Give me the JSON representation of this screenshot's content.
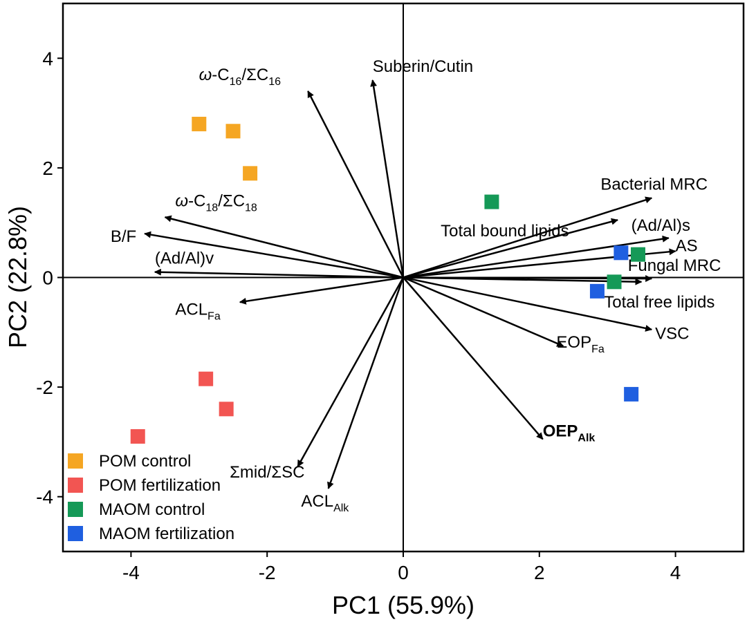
{
  "chart_data": {
    "type": "scatter",
    "subtype": "pca-biplot",
    "xlabel": "PC1 (55.9%)",
    "ylabel": "PC2 (22.8%)",
    "xlim": [
      -5,
      5
    ],
    "ylim": [
      -5,
      5
    ],
    "xticks": [
      -4,
      -2,
      0,
      2,
      4
    ],
    "yticks": [
      -4,
      -2,
      0,
      2,
      4
    ],
    "grid": false,
    "zero_lines": true,
    "legend_position": "bottom-left",
    "series": [
      {
        "name": "POM control",
        "color": "#F5A623",
        "points": [
          [
            -3.0,
            2.8
          ],
          [
            -2.5,
            2.67
          ],
          [
            -2.25,
            1.9
          ]
        ]
      },
      {
        "name": "POM fertilization",
        "color": "#F25552",
        "points": [
          [
            -2.9,
            -1.85
          ],
          [
            -2.6,
            -2.4
          ],
          [
            -3.9,
            -2.9
          ]
        ]
      },
      {
        "name": "MAOM control",
        "color": "#159957",
        "points": [
          [
            1.3,
            1.38
          ],
          [
            3.45,
            0.42
          ],
          [
            3.1,
            -0.08
          ]
        ]
      },
      {
        "name": "MAOM fertilization",
        "color": "#1F5FE0",
        "points": [
          [
            3.2,
            0.45
          ],
          [
            2.85,
            -0.25
          ],
          [
            3.35,
            -2.13
          ]
        ]
      }
    ],
    "vectors": [
      {
        "label": "ω-C16/ΣC16",
        "main": "ω-C",
        "sub": "16",
        "suffix": "/ΣC",
        "sub2": "16",
        "italic_prefix": true,
        "bold": false,
        "x": -1.4,
        "y": 3.4,
        "lx": -2.4,
        "ly": 3.6,
        "anchor": "middle"
      },
      {
        "label": "Suberin/Cutin",
        "main": "Suberin/Cutin",
        "bold": false,
        "x": -0.45,
        "y": 3.6,
        "lx": -0.45,
        "ly": 3.75,
        "anchor": "start"
      },
      {
        "label": "ω-C18/ΣC18",
        "main": "ω-C",
        "sub": "18",
        "suffix": "/ΣC",
        "sub2": "18",
        "italic_prefix": true,
        "bold": false,
        "x": -3.5,
        "y": 1.1,
        "lx": -3.35,
        "ly": 1.3,
        "anchor": "start"
      },
      {
        "label": "B/F",
        "main": "B/F",
        "bold": false,
        "x": -3.8,
        "y": 0.8,
        "lx": -4.3,
        "ly": 0.65,
        "anchor": "start"
      },
      {
        "label": "(Ad/Al)v",
        "main": "(Ad/Al)v",
        "bold": false,
        "x": -3.65,
        "y": 0.1,
        "lx": -3.65,
        "ly": 0.25,
        "anchor": "start"
      },
      {
        "label": "ACLFa",
        "main": "ACL",
        "sub": "Fa",
        "bold": false,
        "x": -2.4,
        "y": -0.45,
        "lx": -3.35,
        "ly": -0.68,
        "anchor": "start"
      },
      {
        "label": "Σmid/ΣSC",
        "main": "Σmid/ΣSC",
        "bold": false,
        "x": -1.55,
        "y": -3.45,
        "lx": -2.55,
        "ly": -3.65,
        "anchor": "start"
      },
      {
        "label": "ACLAlk",
        "main": "ACL",
        "sub": "Alk",
        "bold": false,
        "x": -1.1,
        "y": -3.85,
        "lx": -1.5,
        "ly": -4.18,
        "anchor": "start"
      },
      {
        "label": "Bacterial MRC",
        "main": "Bacterial MRC",
        "bold": false,
        "x": 3.65,
        "y": 1.45,
        "lx": 2.9,
        "ly": 1.6,
        "anchor": "start"
      },
      {
        "label": "Total bound lipids",
        "main": "Total bound lipids",
        "bold": false,
        "x": 3.15,
        "y": 1.05,
        "lx": 0.55,
        "ly": 0.75,
        "anchor": "start"
      },
      {
        "label": "(Ad/Al)s",
        "main": "(Ad/Al)s",
        "bold": false,
        "x": 3.9,
        "y": 0.72,
        "lx": 3.35,
        "ly": 0.85,
        "anchor": "start"
      },
      {
        "label": "AS",
        "main": "AS",
        "bold": false,
        "x": 4.0,
        "y": 0.48,
        "lx": 4.0,
        "ly": 0.48,
        "anchor": "start"
      },
      {
        "label": "Fungal MRC",
        "main": "Fungal MRC",
        "bold": false,
        "x": 3.65,
        "y": -0.02,
        "lx": 3.3,
        "ly": 0.12,
        "anchor": "start"
      },
      {
        "label": "Total free lipids",
        "main": "Total free lipids",
        "bold": false,
        "x": 3.5,
        "y": -0.08,
        "lx": 2.95,
        "ly": -0.55,
        "anchor": "start"
      },
      {
        "label": "VSC",
        "main": "VSC",
        "bold": false,
        "x": 3.65,
        "y": -0.95,
        "lx": 3.7,
        "ly": -1.12,
        "anchor": "start"
      },
      {
        "label": "EOPFa",
        "main": "EOP",
        "sub": "Fa",
        "bold": false,
        "x": 2.35,
        "y": -1.25,
        "lx": 2.25,
        "ly": -1.28,
        "anchor": "start"
      },
      {
        "label": "OEPAlk",
        "main": "OEP",
        "sub": "Alk",
        "bold": true,
        "x": 2.05,
        "y": -2.95,
        "lx": 2.05,
        "ly": -2.9,
        "anchor": "start"
      }
    ]
  }
}
